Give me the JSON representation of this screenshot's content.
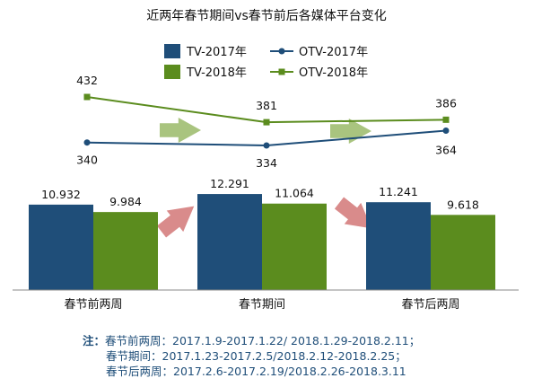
{
  "chart_data": {
    "title": "近两年春节期间vs春节前后各媒体平台变化",
    "type": "bar",
    "categories": [
      "春节前两周",
      "春节期间",
      "春节后两周"
    ],
    "series": [
      {
        "name": "TV-2017年",
        "type": "bar",
        "values": [
          10.932,
          12.291,
          11.241
        ],
        "labels": [
          "10.932",
          "12.291",
          "11.241"
        ],
        "color": "#1f4e79"
      },
      {
        "name": "TV-2018年",
        "type": "bar",
        "values": [
          9.984,
          11.064,
          9.618
        ],
        "labels": [
          "9.984",
          "11.064",
          "9.618"
        ],
        "color": "#5b8c1e"
      },
      {
        "name": "OTV-2017年",
        "type": "line",
        "values": [
          340,
          334,
          364
        ],
        "labels": [
          "340",
          "334",
          "364"
        ],
        "color": "#1f4e79",
        "marker": "circle"
      },
      {
        "name": "OTV-2018年",
        "type": "line",
        "values": [
          432,
          381,
          386
        ],
        "labels": [
          "432",
          "381",
          "386"
        ],
        "color": "#5b8c1e",
        "marker": "square"
      }
    ],
    "bar_ylim": [
      0,
      13
    ],
    "line_ylim": [
      320,
      440
    ],
    "legend_position": "top",
    "grid": false,
    "arrow_colors": {
      "green": "#a9c47f",
      "red": "#d98b8b"
    }
  },
  "notes": {
    "label": "注：",
    "lines": [
      {
        "term": "春节前两周：",
        "range": "2017.1.9-2017.1.22/ 2018.1.29-2018.2.11；"
      },
      {
        "term": "春节期间：",
        "range": "2017.1.23-2017.2.5/2018.2.12-2018.2.25；"
      },
      {
        "term": "春节后两周：",
        "range": "2017.2.6-2017.2.19/2018.2.26-2018.3.11"
      }
    ]
  }
}
